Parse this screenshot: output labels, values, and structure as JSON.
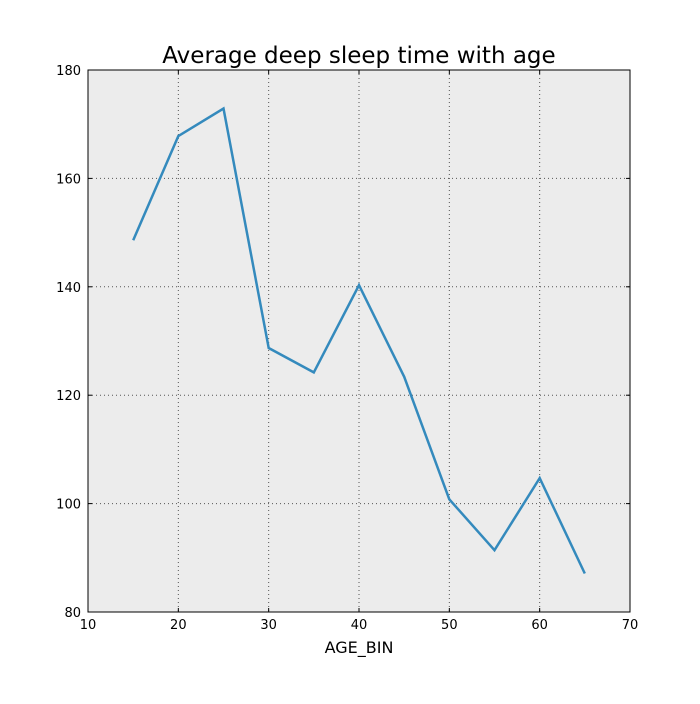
{
  "chart_data": {
    "type": "line",
    "title": "Average deep sleep time with age",
    "xlabel": "AGE_BIN",
    "ylabel": "",
    "xlim": [
      10,
      70
    ],
    "ylim": [
      80,
      180
    ],
    "xticks": [
      10,
      20,
      30,
      40,
      50,
      60,
      70
    ],
    "yticks": [
      80,
      100,
      120,
      140,
      160,
      180
    ],
    "grid": true,
    "legend": "none",
    "colors": {
      "line": "#348abd",
      "plot_background": "#ececec",
      "grid": "#555555",
      "axes": "#000000"
    },
    "series": [
      {
        "x": [
          15,
          20,
          25,
          30,
          35,
          40,
          45,
          50,
          55,
          60,
          65
        ],
        "y": [
          148.6,
          167.8,
          172.9,
          128.7,
          124.2,
          140.3,
          123.4,
          100.8,
          91.4,
          104.7,
          87.1
        ]
      }
    ]
  }
}
